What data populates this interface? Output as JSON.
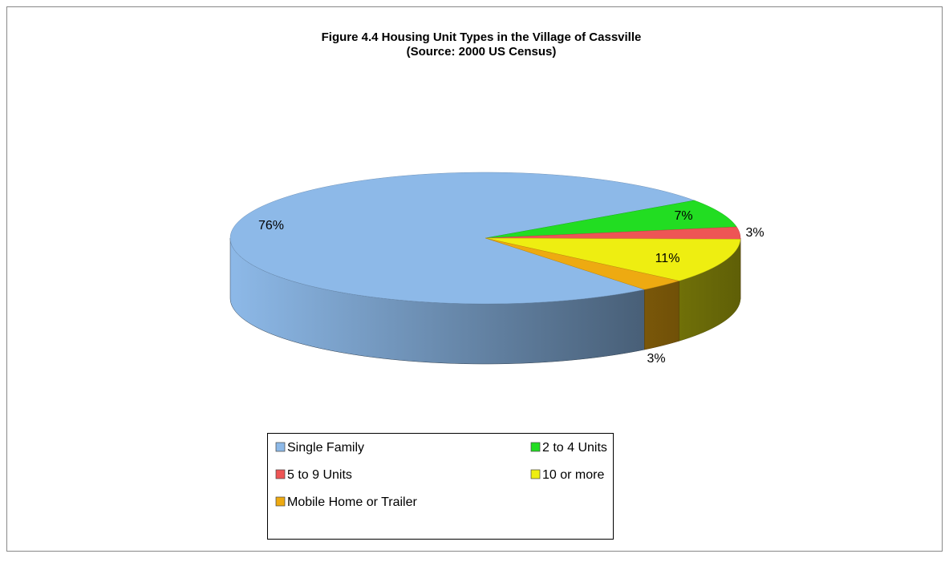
{
  "chart_data": {
    "type": "pie",
    "title": "Figure 4.4 Housing Unit Types in the Village of Cassville",
    "subtitle": "(Source: 2000 US Census)",
    "categories": [
      "Single Family",
      "2 to 4 Units",
      "5 to 9 Units",
      "10 or more",
      "Mobile Home or Trailer"
    ],
    "values": [
      76,
      7,
      3,
      11,
      3
    ],
    "value_labels": [
      "76%",
      "7%",
      "3%",
      "11%",
      "3%"
    ],
    "colors": [
      "#8db9e8",
      "#22dd22",
      "#ee5555",
      "#eeee11",
      "#eeaa11"
    ],
    "legend": "bottom"
  }
}
